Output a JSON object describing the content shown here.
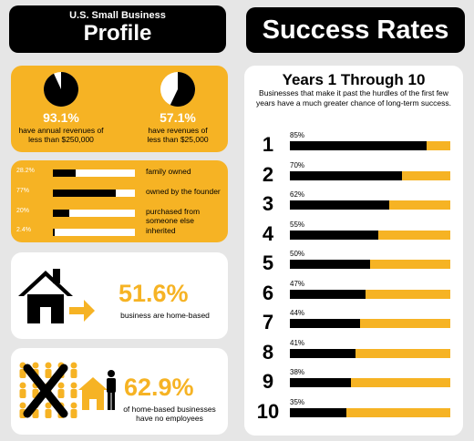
{
  "header": {
    "profile_subtitle": "U.S. Small Business",
    "profile_title": "Profile",
    "success_title": "Success Rates"
  },
  "revenue": [
    {
      "pct_label": "93.1%",
      "value": 93.1,
      "desc_line1": "have annual revenues of",
      "desc_line2": "less than $250,000"
    },
    {
      "pct_label": "57.1%",
      "value": 57.1,
      "desc_line1": "have revenues of",
      "desc_line2": "less than $25,000"
    }
  ],
  "ownership": [
    {
      "pct_label": "28.2%",
      "value": 28.2,
      "label": "family owned"
    },
    {
      "pct_label": "77%",
      "value": 77,
      "label": "owned by the founder"
    },
    {
      "pct_label": "20%",
      "value": 20,
      "label": "purchased from someone else"
    },
    {
      "pct_label": "2.4%",
      "value": 2.4,
      "label": "inherited"
    }
  ],
  "home_based": {
    "pct_label": "51.6%",
    "desc": "business are home-based"
  },
  "no_employees": {
    "pct_label": "62.9%",
    "desc_line1": "of home-based businesses",
    "desc_line2": "have no employees"
  },
  "years": {
    "title": "Years 1 Through 10",
    "subtitle": "Businesses that make it past the hurdles of the first few years have a much greater chance of long-term success.",
    "rows": [
      {
        "year": "1",
        "pct_label": "85%",
        "value": 85
      },
      {
        "year": "2",
        "pct_label": "70%",
        "value": 70
      },
      {
        "year": "3",
        "pct_label": "62%",
        "value": 62
      },
      {
        "year": "4",
        "pct_label": "55%",
        "value": 55
      },
      {
        "year": "5",
        "pct_label": "50%",
        "value": 50
      },
      {
        "year": "6",
        "pct_label": "47%",
        "value": 47
      },
      {
        "year": "7",
        "pct_label": "44%",
        "value": 44
      },
      {
        "year": "8",
        "pct_label": "41%",
        "value": 41
      },
      {
        "year": "9",
        "pct_label": "38%",
        "value": 38
      },
      {
        "year": "10",
        "pct_label": "35%",
        "value": 35
      }
    ]
  },
  "colors": {
    "accent": "#f6b324",
    "dark": "#000000",
    "light": "#ffffff"
  }
}
